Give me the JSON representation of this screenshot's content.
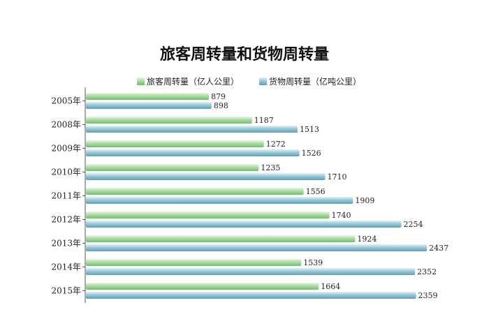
{
  "chart_data": {
    "type": "bar",
    "orientation": "horizontal",
    "title": "旅客周转量和货物周转量",
    "categories": [
      "2005年",
      "2008年",
      "2009年",
      "2010年",
      "2011年",
      "2012年",
      "2013年",
      "2014年",
      "2015年"
    ],
    "series": [
      {
        "name": "旅客周转量（亿人公里）",
        "values": [
          879,
          1187,
          1272,
          1235,
          1556,
          1740,
          1924,
          1539,
          1664
        ],
        "color": "#8fd28a"
      },
      {
        "name": "货物周转量（亿吨公里）",
        "values": [
          898,
          1513,
          1526,
          1710,
          1909,
          2254,
          2437,
          2352,
          2359
        ],
        "color": "#7ab7c9"
      }
    ],
    "xlabel": "",
    "ylabel": "",
    "xlim": [
      0,
      2500
    ],
    "grid": false,
    "legend_position": "top"
  }
}
